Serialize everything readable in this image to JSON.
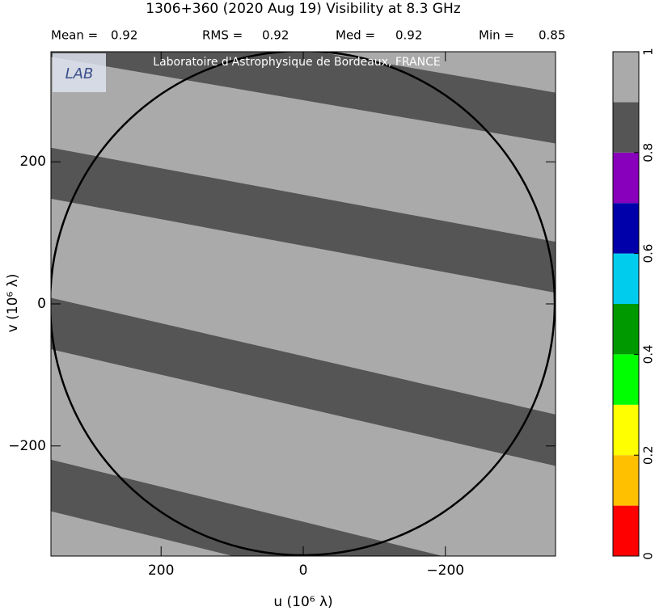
{
  "chart_data": {
    "type": "visibility-map",
    "title": "1306+360  (2020 Aug 19)   Visibility at  8.3 GHz",
    "stats": [
      {
        "label": "Mean =",
        "value": 0.92
      },
      {
        "label": "RMS =",
        "value": 0.92
      },
      {
        "label": "Med =",
        "value": 0.92
      },
      {
        "label": "Min =",
        "value": 0.85
      }
    ],
    "watermark": "Laboratoire d'Astrophysique de Bordeaux, FRANCE",
    "logo": "LAB",
    "x_label": "u  (10⁶ λ)",
    "y_label": "v  (10⁶ λ)",
    "xlim": [
      355,
      -355
    ],
    "ylim": [
      -355,
      355
    ],
    "xticks": [
      200,
      0,
      {
        "value": -200,
        "label": "−200"
      }
    ],
    "yticks": [
      {
        "value": -200,
        "label": "−200"
      },
      0,
      200
    ],
    "colorbar": {
      "bins": [
        0,
        0.1,
        0.2,
        0.3,
        0.4,
        0.5,
        0.6,
        0.7,
        0.8,
        0.9,
        1
      ],
      "colors": [
        "#ff0000",
        "#ffc000",
        "#ffff00",
        "#00ff00",
        "#009900",
        "#00ccee",
        "#0000aa",
        "#8800bb",
        "#555555",
        "#aaaaaa"
      ],
      "ticks": [
        0,
        0.2,
        0.4,
        0.6,
        0.8,
        1
      ]
    }
  }
}
